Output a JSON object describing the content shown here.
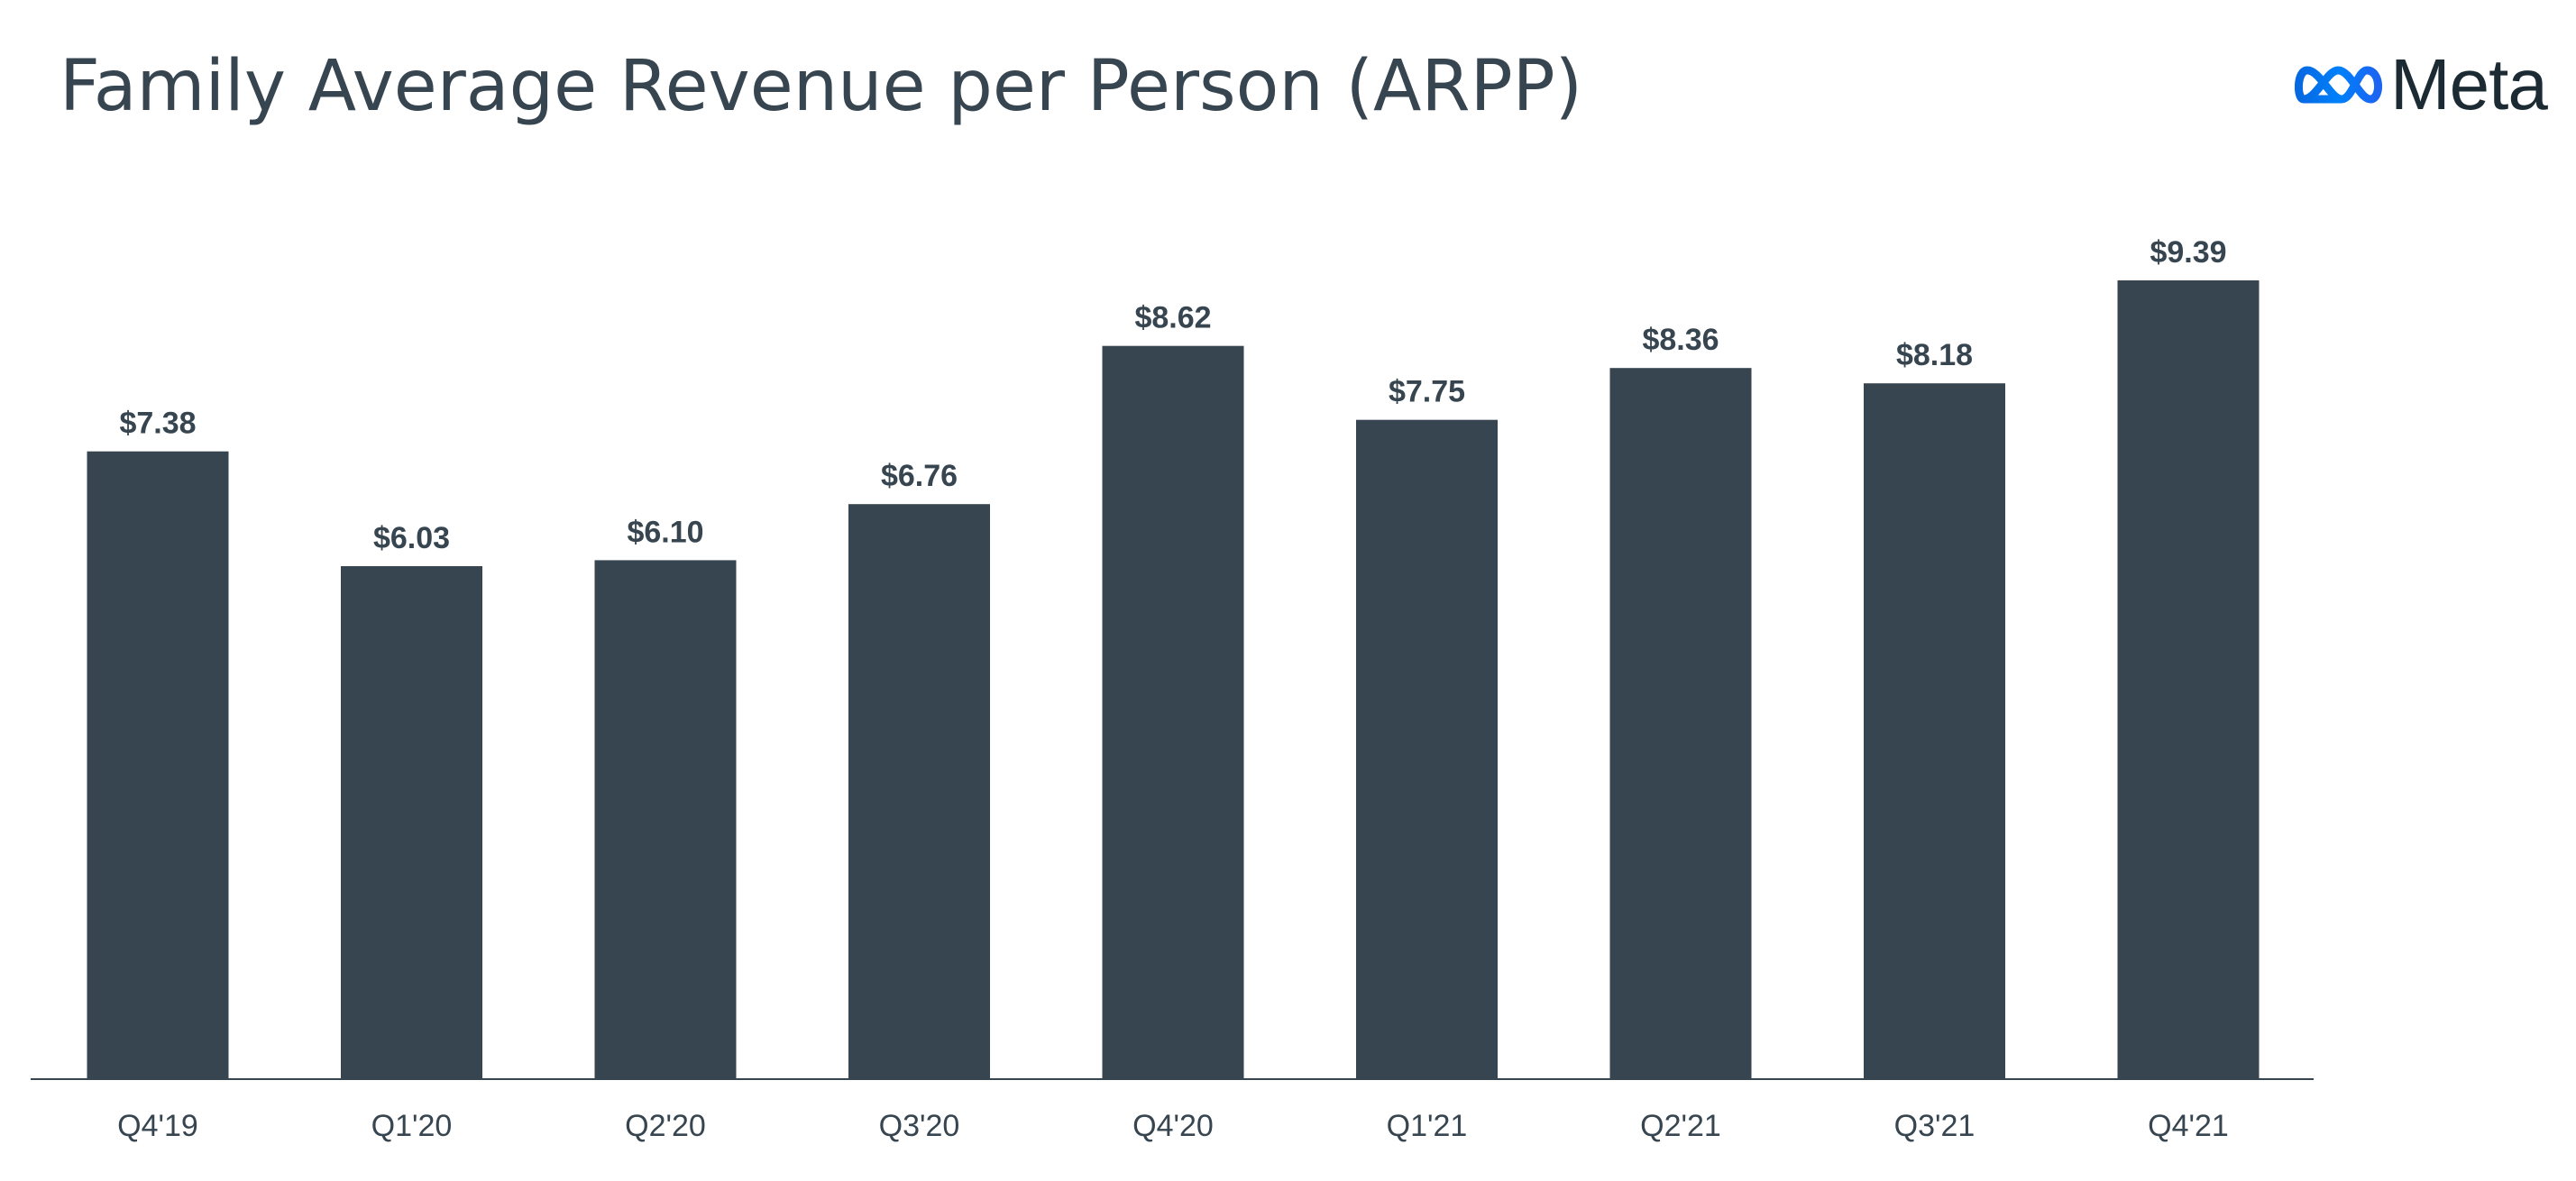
{
  "page": {
    "title": "Family Average Revenue per Person (ARPP)"
  },
  "brand": {
    "name": "Meta",
    "icon": "infinity-logo-icon",
    "gradient_colors": [
      "#0668e1",
      "#0080fb",
      "#1c64f2"
    ]
  },
  "colors": {
    "bar": "#36454f",
    "axis": "#36454f",
    "label": "#36454f"
  },
  "chart_data": {
    "type": "bar",
    "title": "Family Average Revenue per Person (ARPP)",
    "xlabel": "",
    "ylabel": "",
    "ylim": [
      0,
      9.39
    ],
    "grid": false,
    "categories": [
      "Q4'19",
      "Q1'20",
      "Q2'20",
      "Q3'20",
      "Q4'20",
      "Q1'21",
      "Q2'21",
      "Q3'21",
      "Q4'21"
    ],
    "values": [
      7.38,
      6.03,
      6.1,
      6.76,
      8.62,
      7.75,
      8.36,
      8.18,
      9.39
    ],
    "data_labels": [
      "$7.38",
      "$6.03",
      "$6.10",
      "$6.76",
      "$8.62",
      "$7.75",
      "$8.36",
      "$8.18",
      "$9.39"
    ]
  }
}
